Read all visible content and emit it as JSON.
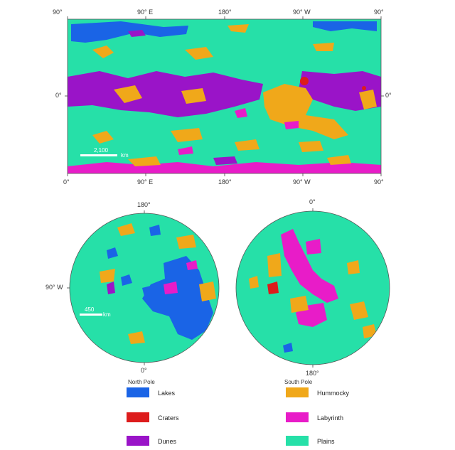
{
  "colors": {
    "lakes": "#1a64e6",
    "craters": "#dd1c1c",
    "dunes": "#9a14c8",
    "hummocky": "#f0a81a",
    "labyrinth": "#e81cc8",
    "plains": "#26e0a8"
  },
  "equirect_map": {
    "top_axis": [
      "90°",
      "90° E",
      "180°",
      "90° W",
      "90°"
    ],
    "bottom_axis": [
      "0°",
      "90° E",
      "180°",
      "90° W",
      "90°"
    ],
    "left_equator": "0°",
    "right_equator": "0°",
    "scale_bar": {
      "value": "2,100",
      "unit": "km"
    }
  },
  "north_pole_map": {
    "top_label": "180°",
    "left_label": "90° W",
    "bottom_label": "0°",
    "scale_bar": {
      "value": "450",
      "unit": "km"
    }
  },
  "south_pole_map": {
    "top_label": "0°",
    "bottom_label": "180°"
  },
  "legend": {
    "north_pole_heading": "North Pole",
    "south_pole_heading": "South Pole",
    "items": [
      {
        "label": "Lakes",
        "color_key": "lakes"
      },
      {
        "label": "Craters",
        "color_key": "craters"
      },
      {
        "label": "Dunes",
        "color_key": "dunes"
      },
      {
        "label": "Hummocky",
        "color_key": "hummocky"
      },
      {
        "label": "Labyrinth",
        "color_key": "labyrinth"
      },
      {
        "label": "Plains",
        "color_key": "plains"
      }
    ]
  }
}
